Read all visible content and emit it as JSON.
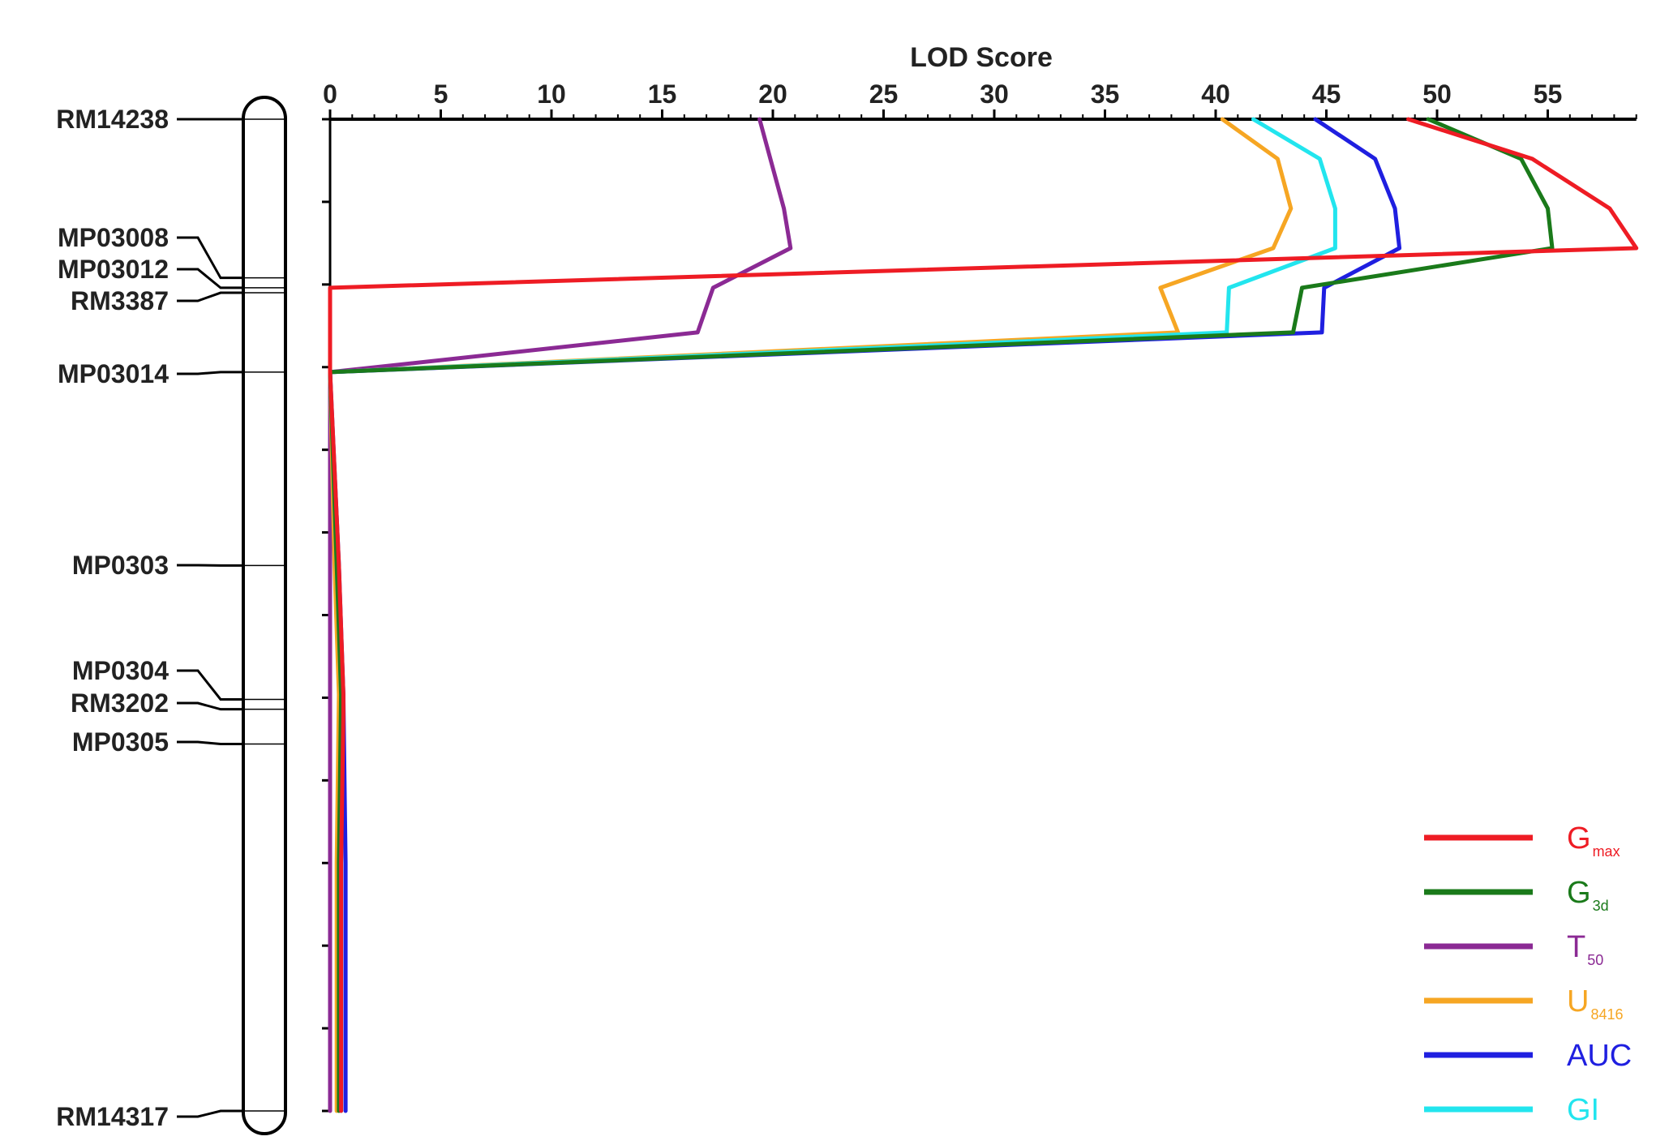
{
  "chart_data": {
    "type": "line",
    "orientation": "vertical-position",
    "xlabel": "LOD Score",
    "xlim": [
      0,
      59
    ],
    "x_ticks": [
      "0",
      "5",
      "10",
      "15",
      "20",
      "25",
      "30",
      "35",
      "40",
      "45",
      "50",
      "55"
    ],
    "position_range": [
      0,
      100
    ],
    "grid": false,
    "legend_placement": "bottom-right",
    "markers": [
      {
        "name": "RM14238",
        "pos": 0
      },
      {
        "name": "MP03008",
        "pos": 16
      },
      {
        "name": "MP03012",
        "pos": 17
      },
      {
        "name": "RM3387",
        "pos": 17.5
      },
      {
        "name": "MP03014",
        "pos": 25.5
      },
      {
        "name": "MP0303",
        "pos": 45
      },
      {
        "name": "MP0304",
        "pos": 58.5
      },
      {
        "name": "RM3202",
        "pos": 59.5
      },
      {
        "name": "MP0305",
        "pos": 63
      },
      {
        "name": "RM14317",
        "pos": 100
      }
    ],
    "series": [
      {
        "name": "G",
        "sub": "max",
        "color": "#ee1c24",
        "points": [
          [
            48.7,
            0
          ],
          [
            54.3,
            4
          ],
          [
            57.8,
            9
          ],
          [
            59,
            13
          ],
          [
            0,
            17
          ],
          [
            0,
            25.5
          ],
          [
            0.4,
            45
          ],
          [
            0.6,
            58
          ],
          [
            0.6,
            60
          ],
          [
            0.5,
            75
          ],
          [
            0.5,
            100
          ]
        ]
      },
      {
        "name": "G",
        "sub": "3d",
        "color": "#1a7a1a",
        "points": [
          [
            49.6,
            0
          ],
          [
            53.8,
            4
          ],
          [
            55,
            9
          ],
          [
            55.2,
            13
          ],
          [
            43.9,
            17
          ],
          [
            43.5,
            21.5
          ],
          [
            0,
            25.5
          ],
          [
            0.3,
            45
          ],
          [
            0.5,
            58
          ],
          [
            0.4,
            75
          ],
          [
            0.4,
            100
          ]
        ]
      },
      {
        "name": "T",
        "sub": "50",
        "color": "#8b2a94",
        "points": [
          [
            19.4,
            0
          ],
          [
            20.5,
            9
          ],
          [
            20.8,
            13
          ],
          [
            17.3,
            17
          ],
          [
            16.6,
            21.5
          ],
          [
            0,
            25.5
          ],
          [
            0,
            45
          ],
          [
            0,
            60
          ],
          [
            0,
            100
          ]
        ]
      },
      {
        "name": "U",
        "sub": "8416",
        "color": "#f6a623",
        "points": [
          [
            40.3,
            0
          ],
          [
            42.8,
            4
          ],
          [
            43.4,
            9
          ],
          [
            42.6,
            13
          ],
          [
            37.5,
            17
          ],
          [
            38.3,
            21.5
          ],
          [
            0,
            25.5
          ],
          [
            0.2,
            45
          ],
          [
            0.4,
            58
          ],
          [
            0.3,
            75
          ],
          [
            0.3,
            100
          ]
        ]
      },
      {
        "name": "AUC",
        "sub": "",
        "color": "#1f1fe0",
        "points": [
          [
            44.5,
            0
          ],
          [
            47.2,
            4
          ],
          [
            48.1,
            9
          ],
          [
            48.3,
            13
          ],
          [
            44.9,
            17
          ],
          [
            44.8,
            21.5
          ],
          [
            0,
            25.5
          ],
          [
            0.4,
            45
          ],
          [
            0.6,
            58
          ],
          [
            0.7,
            75
          ],
          [
            0.7,
            100
          ]
        ]
      },
      {
        "name": "GI",
        "sub": "",
        "color": "#22e5ee",
        "points": [
          [
            41.7,
            0
          ],
          [
            44.7,
            4
          ],
          [
            45.4,
            9
          ],
          [
            45.4,
            13
          ],
          [
            40.6,
            17
          ],
          [
            40.5,
            21.5
          ],
          [
            0,
            25.5
          ],
          [
            0.3,
            45
          ],
          [
            0.5,
            58
          ],
          [
            0.5,
            75
          ],
          [
            0.5,
            100
          ]
        ]
      }
    ]
  }
}
